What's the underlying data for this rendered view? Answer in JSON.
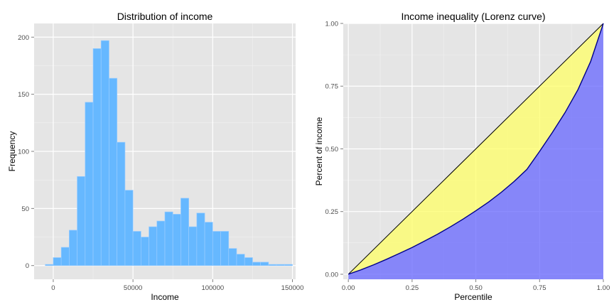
{
  "chart_data": [
    {
      "type": "bar",
      "title": "Distribution of income",
      "xlabel": "Income",
      "ylabel": "Frequency",
      "xlim": [
        -12000,
        152000
      ],
      "ylim": [
        -12,
        212
      ],
      "xticks": [
        0,
        50000,
        100000,
        150000
      ],
      "yticks": [
        0,
        50,
        100,
        150,
        200
      ],
      "bin_width": 5000,
      "bin_starts": [
        -5000,
        0,
        5000,
        10000,
        15000,
        20000,
        25000,
        30000,
        35000,
        40000,
        45000,
        50000,
        55000,
        60000,
        65000,
        70000,
        75000,
        80000,
        85000,
        90000,
        95000,
        100000,
        105000,
        110000,
        115000,
        120000,
        125000,
        130000,
        135000,
        140000,
        145000
      ],
      "values": [
        1,
        7,
        16,
        31,
        78,
        143,
        190,
        197,
        164,
        108,
        66,
        30,
        25,
        34,
        39,
        47,
        45,
        59,
        34,
        46,
        38,
        30,
        30,
        15,
        10,
        7,
        3,
        3,
        1,
        1,
        1
      ],
      "bar_color": "#66B8FF",
      "bar_edge": "#99CCFF",
      "grid": true
    },
    {
      "type": "area",
      "title": "Income inequality (Lorenz curve)",
      "xlabel": "Percentile",
      "ylabel": "Percent of income",
      "xlim": [
        -0.02,
        1.0
      ],
      "ylim": [
        -0.02,
        1.0
      ],
      "xticks": [
        0,
        0.25,
        0.5,
        0.75,
        1.0
      ],
      "yticks": [
        0,
        0.25,
        0.5,
        0.75,
        1.0
      ],
      "tick_labels": [
        "0.00",
        "0.25",
        "0.50",
        "0.75",
        "1.00"
      ],
      "series": [
        {
          "x": [
            0,
            0.05,
            0.1,
            0.15,
            0.2,
            0.25,
            0.3,
            0.35,
            0.4,
            0.45,
            0.5,
            0.55,
            0.6,
            0.65,
            0.7,
            0.75,
            0.8,
            0.85,
            0.9,
            0.95,
            1.0
          ],
          "y": [
            0,
            0.018,
            0.038,
            0.06,
            0.083,
            0.107,
            0.133,
            0.16,
            0.189,
            0.22,
            0.253,
            0.288,
            0.327,
            0.37,
            0.418,
            0.49,
            0.565,
            0.645,
            0.735,
            0.848,
            1.0
          ]
        },
        {
          "x": [
            0,
            1
          ],
          "y": [
            0,
            1
          ]
        }
      ],
      "fill_between_color": "#FFFF66",
      "fill_below_color": "#6666FF",
      "grid": true
    }
  ]
}
